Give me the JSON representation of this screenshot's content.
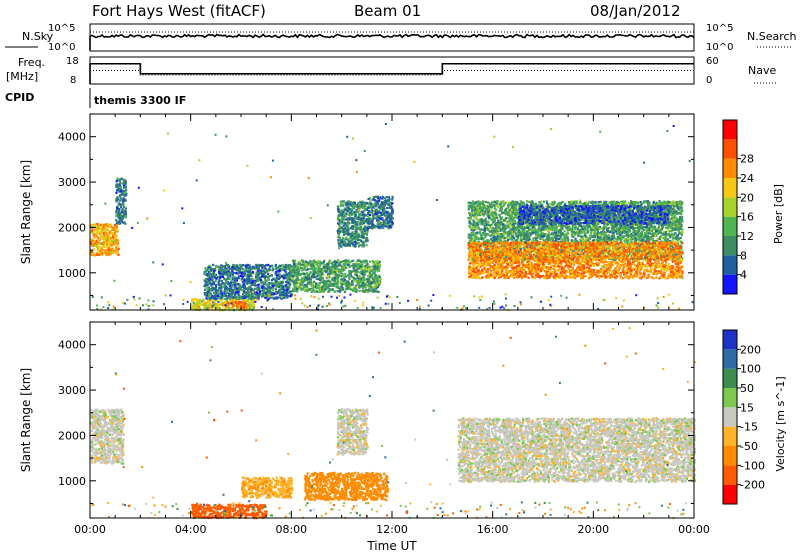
{
  "header": {
    "station": "Fort Hays West (fitACF)",
    "beam": "Beam 01",
    "date": "08/Jan/2012"
  },
  "top_panels": {
    "nsky_label": "N.Sky",
    "nsearch_label": "N.Search",
    "noise_ticks": [
      "10^5",
      "10^0"
    ],
    "freq_label_1": "Freq.",
    "freq_label_2": "[MHz]",
    "freq_ticks": [
      "18",
      "8"
    ],
    "nave_label": "Nave",
    "nave_ticks": [
      "60",
      "0"
    ],
    "cpid_label": "CPID",
    "cpid_value": "themis 3300 IF"
  },
  "axes": {
    "xlabel": "Time UT",
    "x_ticks": [
      "00:00",
      "04:00",
      "08:00",
      "12:00",
      "16:00",
      "20:00",
      "00:00"
    ],
    "ylabel": "Slant Range [km]",
    "y_ticks": [
      "1000",
      "2000",
      "3000",
      "4000"
    ]
  },
  "power_scale": {
    "label": "Power [dB]",
    "ticks": [
      "4",
      "8",
      "12",
      "16",
      "20",
      "24",
      "28"
    ],
    "colors": [
      "#1414ff",
      "#2060a0",
      "#3c8c64",
      "#50b450",
      "#a8d228",
      "#f5c814",
      "#ff8c00",
      "#ff5000",
      "#ff0000"
    ]
  },
  "velocity_scale": {
    "label": "Velocity [m s^-1]",
    "ticks": [
      "200",
      "100",
      "50",
      "15",
      "-15",
      "-50",
      "-100",
      "-200"
    ],
    "colors": [
      "#1e32c8",
      "#2c6aa8",
      "#3c8c50",
      "#7cc850",
      "#c8c8c0",
      "#ffb428",
      "#ff8c00",
      "#ff5a00",
      "#ff0000"
    ]
  },
  "chart_data": [
    {
      "type": "heatmap",
      "title": "Power",
      "xlabel": "Time UT",
      "ylabel": "Slant Range [km]",
      "xlim_hours": [
        0,
        24
      ],
      "ylim_km": [
        180,
        4500
      ],
      "colorbar_range": [
        0,
        30
      ],
      "scatter_regions": [
        {
          "t0": 0.0,
          "t1": 1.1,
          "r0": 1400,
          "r1": 2100,
          "level": 24
        },
        {
          "t0": 1.0,
          "t1": 1.4,
          "r0": 2100,
          "r1": 3100,
          "level": 8
        },
        {
          "t0": 4.0,
          "t1": 6.5,
          "r0": 200,
          "r1": 450,
          "level": 20
        },
        {
          "t0": 5.3,
          "t1": 6.2,
          "r0": 250,
          "r1": 380,
          "level": 28
        },
        {
          "t0": 4.5,
          "t1": 8.0,
          "r0": 450,
          "r1": 1200,
          "level": 8
        },
        {
          "t0": 8.0,
          "t1": 11.5,
          "r0": 600,
          "r1": 1300,
          "level": 12
        },
        {
          "t0": 9.8,
          "t1": 11.0,
          "r0": 1600,
          "r1": 2600,
          "level": 10
        },
        {
          "t0": 11.0,
          "t1": 12.0,
          "r0": 2000,
          "r1": 2700,
          "level": 8
        },
        {
          "t0": 15.0,
          "t1": 23.5,
          "r0": 1300,
          "r1": 2600,
          "level": 12
        },
        {
          "t0": 15.0,
          "t1": 23.5,
          "r0": 900,
          "r1": 1700,
          "level": 26
        },
        {
          "t0": 17.0,
          "t1": 23.0,
          "r0": 2100,
          "r1": 2500,
          "level": 6
        }
      ]
    },
    {
      "type": "heatmap",
      "title": "Velocity",
      "xlabel": "Time UT",
      "ylabel": "Slant Range [km]",
      "xlim_hours": [
        0,
        24
      ],
      "ylim_km": [
        180,
        4500
      ],
      "colorbar_range": [
        -250,
        250
      ],
      "scatter_regions": [
        {
          "t0": 0.0,
          "t1": 1.3,
          "r0": 1400,
          "r1": 2600,
          "level": 0
        },
        {
          "t0": 4.0,
          "t1": 7.0,
          "r0": 200,
          "r1": 500,
          "level": -150
        },
        {
          "t0": 6.0,
          "t1": 8.0,
          "r0": 650,
          "r1": 1100,
          "level": -40
        },
        {
          "t0": 8.5,
          "t1": 11.8,
          "r0": 600,
          "r1": 1200,
          "level": -70
        },
        {
          "t0": 9.8,
          "t1": 11.0,
          "r0": 1600,
          "r1": 2600,
          "level": 0
        },
        {
          "t0": 14.6,
          "t1": 24.0,
          "r0": 1000,
          "r1": 2400,
          "level": 0
        }
      ]
    }
  ]
}
